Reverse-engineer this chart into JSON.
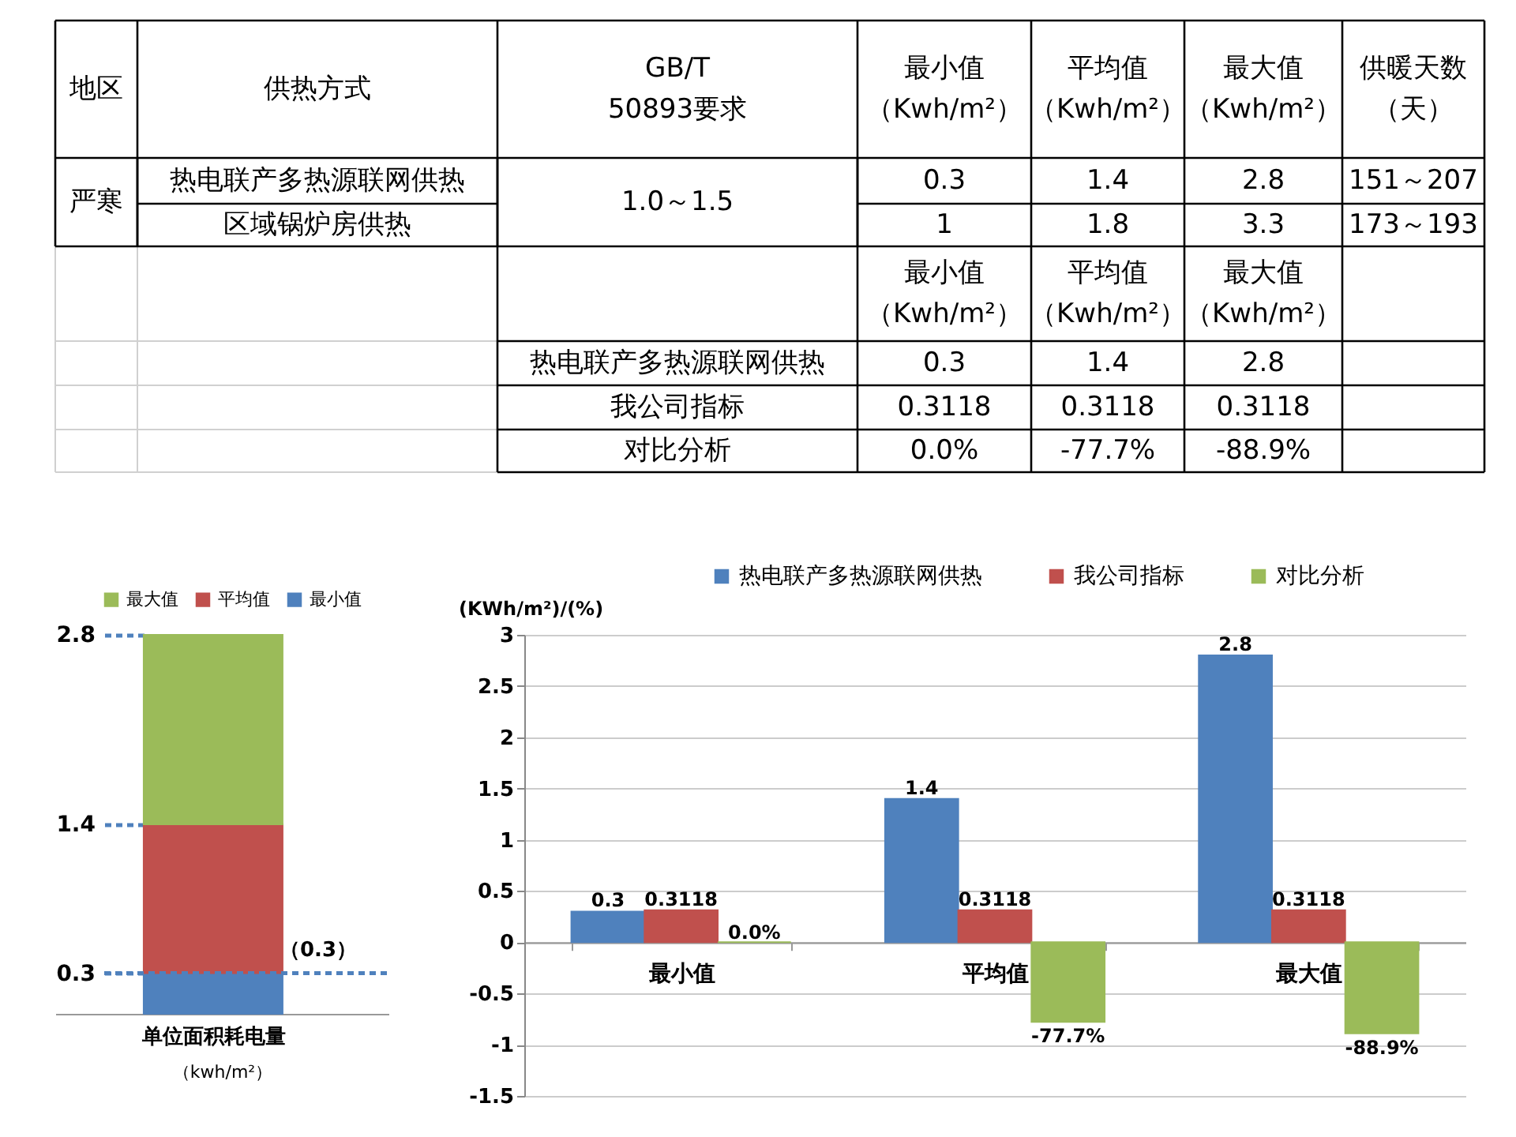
{
  "chart_data": [
    {
      "type": "other",
      "annotations": [
        "地区",
        "供热方式",
        "GB/T 50893要求",
        "最小值（Kwh/m²）",
        "平均值（Kwh/m²）",
        "最大值（Kwh/m²）",
        "供暖天数（天）",
        "严寒",
        "热电联产多热源联网供热",
        "1.0～1.5",
        "0.3",
        "1.4",
        "2.8",
        "151～207",
        "区域锅炉房供热",
        "1",
        "1.8",
        "3.3",
        "173～193",
        "最小值（Kwh/m²）",
        "平均值（Kwh/m²）",
        "最大值（Kwh/m²）",
        "热电联产多热源联网供热",
        "0.3",
        "1.4",
        "2.8",
        "我公司指标",
        "0.3118",
        "0.3118",
        "0.3118",
        "对比分析",
        "0.0%",
        "-77.7%",
        "-88.9%"
      ]
    },
    {
      "type": "bar",
      "stacked": true,
      "categories": [
        "单位面积耗电量"
      ],
      "xlabel": "（kwh/m²）",
      "series": [
        {
          "name": "最小值",
          "color": "#4f81bd",
          "values": [
            0.3
          ]
        },
        {
          "name": "平均值",
          "color": "#c0504d",
          "values": [
            1.1
          ]
        },
        {
          "name": "最大值",
          "color": "#9bbb59",
          "values": [
            1.4
          ]
        }
      ],
      "ylim": [
        0,
        2.8
      ],
      "yticks": [
        0.3,
        1.4,
        2.8
      ],
      "legend": "top",
      "ref_lines": [
        {
          "axis": "y",
          "value": 0.3,
          "label": "（0.3）",
          "color": "#4f81bd",
          "line_style": "dashed"
        }
      ]
    },
    {
      "type": "bar",
      "ylabel": "(KWh/m²)/(%)",
      "categories": [
        "最小值",
        "平均值",
        "最大值"
      ],
      "series": [
        {
          "name": "热电联产多热源联网供热",
          "color": "#4f81bd",
          "values": [
            0.3,
            1.4,
            2.8
          ],
          "value_labels": [
            "0.3",
            "1.4",
            "2.8"
          ]
        },
        {
          "name": "我公司指标",
          "color": "#c0504d",
          "values": [
            0.3118,
            0.3118,
            0.3118
          ],
          "value_labels": [
            "0.3118",
            "0.3118",
            "0.3118"
          ]
        },
        {
          "name": "对比分析",
          "color": "#9bbb59",
          "values": [
            0.0,
            -0.777,
            -0.889
          ],
          "value_labels": [
            "0.0%",
            "-77.7%",
            "-88.9%"
          ]
        }
      ],
      "ylim": [
        -1.5,
        3
      ],
      "yticks": [
        -1.5,
        -1,
        -0.5,
        0,
        0.5,
        1,
        1.5,
        2,
        2.5,
        3
      ],
      "grid": "y",
      "legend": "top"
    }
  ]
}
